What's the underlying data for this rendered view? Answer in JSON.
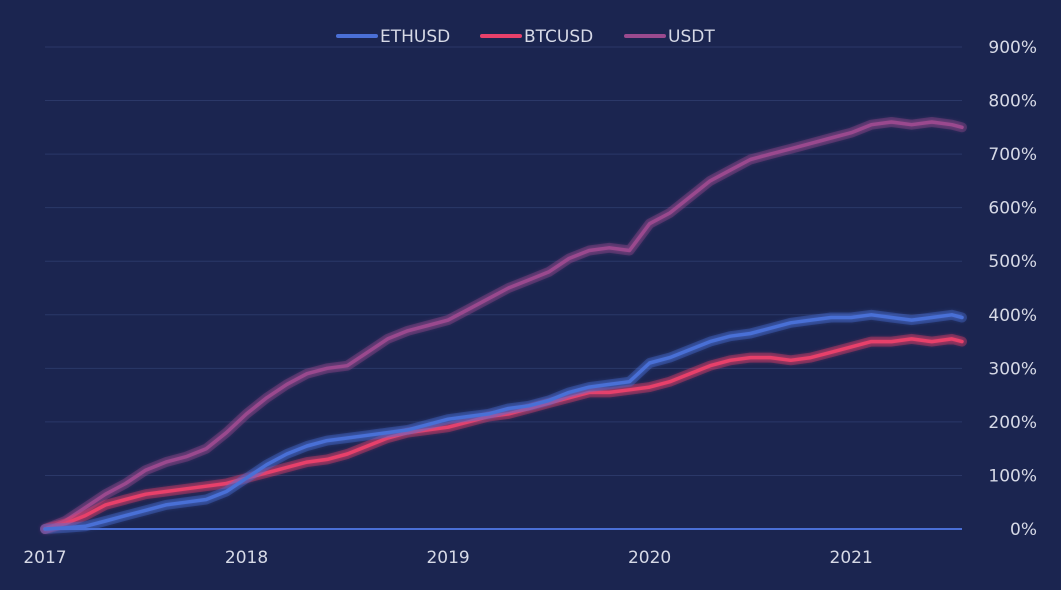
{
  "chart_data": {
    "type": "line",
    "title": "",
    "xlabel": "",
    "ylabel": "",
    "y_axis_side": "right",
    "legend_position": "top-center",
    "grid": "horizontal",
    "x_tick_labels": [
      "2017",
      "2018",
      "2019",
      "2020",
      "2021"
    ],
    "x_ticks": [
      2017.0,
      2018.0,
      2019.0,
      2020.0,
      2021.0
    ],
    "xlim": [
      2017.0,
      2021.55
    ],
    "y_tick_labels": [
      "0%",
      "100%",
      "200%",
      "300%",
      "400%",
      "500%",
      "600%",
      "700%",
      "800%",
      "900%"
    ],
    "y_ticks": [
      0,
      100,
      200,
      300,
      400,
      500,
      600,
      700,
      800,
      900
    ],
    "ylim": [
      0,
      900
    ],
    "x": [
      2017.0,
      2017.1,
      2017.2,
      2017.3,
      2017.4,
      2017.5,
      2017.6,
      2017.7,
      2017.8,
      2017.9,
      2018.0,
      2018.1,
      2018.2,
      2018.3,
      2018.4,
      2018.5,
      2018.6,
      2018.7,
      2018.8,
      2018.9,
      2019.0,
      2019.1,
      2019.2,
      2019.3,
      2019.4,
      2019.5,
      2019.6,
      2019.7,
      2019.8,
      2019.9,
      2020.0,
      2020.1,
      2020.2,
      2020.3,
      2020.4,
      2020.5,
      2020.6,
      2020.7,
      2020.8,
      2020.9,
      2021.0,
      2021.1,
      2021.2,
      2021.3,
      2021.4,
      2021.5,
      2021.55
    ],
    "series": [
      {
        "name": "ETHUSD",
        "color": "#4a6fd6",
        "values": [
          0,
          2,
          5,
          15,
          25,
          35,
          45,
          50,
          55,
          70,
          95,
          120,
          140,
          155,
          165,
          170,
          175,
          180,
          185,
          195,
          205,
          210,
          215,
          225,
          230,
          240,
          255,
          265,
          270,
          275,
          310,
          320,
          335,
          350,
          360,
          365,
          375,
          385,
          390,
          395,
          395,
          400,
          395,
          390,
          395,
          400,
          395
        ]
      },
      {
        "name": "BTCUSD",
        "color": "#e8406a",
        "values": [
          0,
          10,
          25,
          45,
          55,
          65,
          70,
          75,
          80,
          85,
          95,
          105,
          115,
          125,
          130,
          140,
          155,
          170,
          180,
          185,
          190,
          200,
          210,
          215,
          225,
          235,
          245,
          255,
          255,
          260,
          265,
          275,
          290,
          305,
          315,
          320,
          320,
          315,
          320,
          330,
          340,
          350,
          350,
          355,
          350,
          355,
          350
        ]
      },
      {
        "name": "USDT",
        "color": "#9a4a8e",
        "values": [
          0,
          15,
          40,
          65,
          85,
          110,
          125,
          135,
          150,
          180,
          215,
          245,
          270,
          290,
          300,
          305,
          330,
          355,
          370,
          380,
          390,
          410,
          430,
          450,
          465,
          480,
          505,
          520,
          525,
          520,
          570,
          590,
          620,
          650,
          670,
          690,
          700,
          710,
          720,
          730,
          740,
          755,
          760,
          755,
          760,
          755,
          750
        ]
      }
    ]
  }
}
